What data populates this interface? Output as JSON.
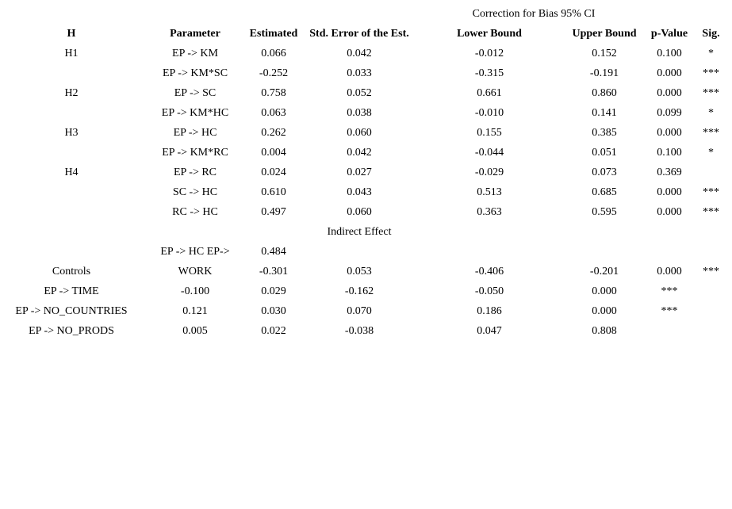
{
  "page": {
    "background_color": "#ffffff",
    "text_color": "#000000"
  },
  "table": {
    "ci_group_header": "Correction for Bias 95% CI",
    "columns": [
      "H",
      "Parameter",
      "Estimated",
      "Std. Error of the Est.",
      "Lower Bound",
      "Upper Bound",
      "p-Value",
      "Sig."
    ],
    "rows": [
      {
        "h_align": "left",
        "cells": [
          "H1",
          "EP -> KM",
          "0.066",
          "0.042",
          "-0.012",
          "0.152",
          "0.100",
          "*"
        ]
      },
      {
        "cells": [
          "",
          "EP -> KM*SC",
          "-0.252",
          "0.033",
          "-0.315",
          "-0.191",
          "0.000",
          "***"
        ]
      },
      {
        "h_align": "left",
        "cells": [
          "H2",
          "EP -> SC",
          "0.758",
          "0.052",
          "0.661",
          "0.860",
          "0.000",
          "***"
        ]
      },
      {
        "cells": [
          "",
          "EP -> KM*HC",
          "0.063",
          "0.038",
          "-0.010",
          "0.141",
          "0.099",
          "*"
        ]
      },
      {
        "h_align": "left",
        "cells": [
          "H3",
          "EP -> HC",
          "0.262",
          "0.060",
          "0.155",
          "0.385",
          "0.000",
          "***"
        ]
      },
      {
        "cells": [
          "",
          "EP -> KM*RC",
          "0.004",
          "0.042",
          "-0.044",
          "0.051",
          "0.100",
          "*"
        ]
      },
      {
        "h_align": "left",
        "cells": [
          "H4",
          "EP -> RC",
          "0.024",
          "0.027",
          "-0.029",
          "0.073",
          "0.369",
          ""
        ]
      },
      {
        "cells": [
          "",
          "SC -> HC",
          "0.610",
          "0.043",
          "0.513",
          "0.685",
          "0.000",
          "***"
        ]
      },
      {
        "cells": [
          "",
          "RC -> HC",
          "0.497",
          "0.060",
          "0.363",
          "0.595",
          "0.000",
          "***"
        ]
      },
      {
        "cells": [
          "",
          "",
          "",
          "Indirect Effect",
          "",
          "",
          "",
          ""
        ]
      },
      {
        "cells": [
          "",
          "EP -> HC EP->",
          "0.484",
          "",
          "",
          "",
          "",
          ""
        ]
      },
      {
        "h_align": "shift",
        "cells": [
          "Controls",
          "WORK",
          "-0.301",
          "0.053",
          "-0.406",
          "-0.201",
          "0.000",
          "***"
        ]
      },
      {
        "h_align": "shift",
        "cells": [
          "EP -> TIME",
          "-0.100",
          "0.029",
          "-0.162",
          "-0.050",
          "0.000",
          "***",
          ""
        ]
      },
      {
        "h_align": "shift",
        "cells": [
          "EP -> NO_COUNTRIES",
          "0.121",
          "0.030",
          "0.070",
          "0.186",
          "0.000",
          "***",
          ""
        ]
      },
      {
        "h_align": "shift",
        "cells": [
          "EP -> NO_PRODS",
          "0.005",
          "0.022",
          "-0.038",
          "0.047",
          "0.808",
          "",
          ""
        ]
      }
    ]
  }
}
